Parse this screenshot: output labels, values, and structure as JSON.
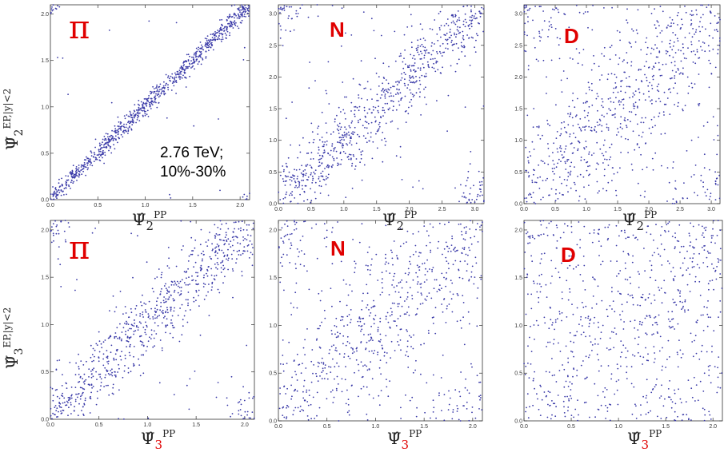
{
  "annotation": {
    "line1": "2.76 TeV;",
    "line2": "10%-30%"
  },
  "colors": {
    "points": "#3a3aa8",
    "panel_label": "#e00000",
    "axis": "#333333"
  },
  "axis_labels": {
    "row1_y_main": "Ψ̂",
    "row1_y_sub": "2",
    "row1_y_sup": "EP,|y|<2",
    "row2_y_main": "Ψ̂",
    "row2_y_sub": "3",
    "row2_y_sup": "EP,|y|<2",
    "row1_x_main": "Ψ̂",
    "row1_x_sub": "2",
    "row1_x_sup": "PP",
    "row2_x_main": "Ψ̂",
    "row2_x_sub": "3",
    "row2_x_sup": "PP"
  },
  "chart_data": [
    {
      "id": "r1c1",
      "type": "scatter",
      "panel_label": "π",
      "xlim": [
        0,
        2.1
      ],
      "ylim": [
        0,
        2.1
      ],
      "xticks": [
        "0.0",
        "0.5",
        "1.0",
        "1.5",
        "2.0"
      ],
      "yticks": [
        "0.0",
        "0.5",
        "1.0",
        "1.5",
        "2.0"
      ],
      "correlation": "strong",
      "n_points": 900
    },
    {
      "id": "r1c2",
      "type": "scatter",
      "panel_label": "N",
      "xlim": [
        0,
        3.14
      ],
      "ylim": [
        0,
        3.14
      ],
      "xticks": [
        "0.0",
        "0.5",
        "1.0",
        "1.5",
        "2.0",
        "2.5",
        "3.0"
      ],
      "yticks": [
        "0.0",
        "0.5",
        "1.0",
        "1.5",
        "2.0",
        "2.5",
        "3.0"
      ],
      "correlation": "moderate",
      "n_points": 850
    },
    {
      "id": "r1c3",
      "type": "scatter",
      "panel_label": "D",
      "xlim": [
        0,
        3.14
      ],
      "ylim": [
        0,
        3.14
      ],
      "xticks": [
        "0.0",
        "0.5",
        "1.0",
        "1.5",
        "2.0",
        "2.5",
        "3.0"
      ],
      "yticks": [
        "0.0",
        "0.5",
        "1.0",
        "1.5",
        "2.0",
        "2.5",
        "3.0"
      ],
      "correlation": "weak",
      "n_points": 800
    },
    {
      "id": "r2c1",
      "type": "scatter",
      "panel_label": "π",
      "xlim": [
        0,
        2.1
      ],
      "ylim": [
        0,
        2.1
      ],
      "xticks": [
        "0.0",
        "0.5",
        "1.0",
        "1.5",
        "2.0"
      ],
      "yticks": [
        "0.0",
        "0.5",
        "1.0",
        "1.5",
        "2.0"
      ],
      "correlation": "moderate",
      "n_points": 800
    },
    {
      "id": "r2c2",
      "type": "scatter",
      "panel_label": "N",
      "xlim": [
        0,
        2.1
      ],
      "ylim": [
        0,
        2.1
      ],
      "xticks": [
        "0.0",
        "0.5",
        "1.0",
        "1.5",
        "2.0"
      ],
      "yticks": [
        "0.0",
        "0.5",
        "1.0",
        "1.5",
        "2.0"
      ],
      "correlation": "weak",
      "n_points": 750
    },
    {
      "id": "r2c3",
      "type": "scatter",
      "panel_label": "D",
      "xlim": [
        0,
        2.1
      ],
      "ylim": [
        0,
        2.1
      ],
      "xticks": [
        "0.0",
        "0.5",
        "1.0",
        "1.5",
        "2.0"
      ],
      "yticks": [
        "0.0",
        "0.5",
        "1.0",
        "1.5",
        "2.0"
      ],
      "correlation": "very-weak",
      "n_points": 750
    }
  ]
}
